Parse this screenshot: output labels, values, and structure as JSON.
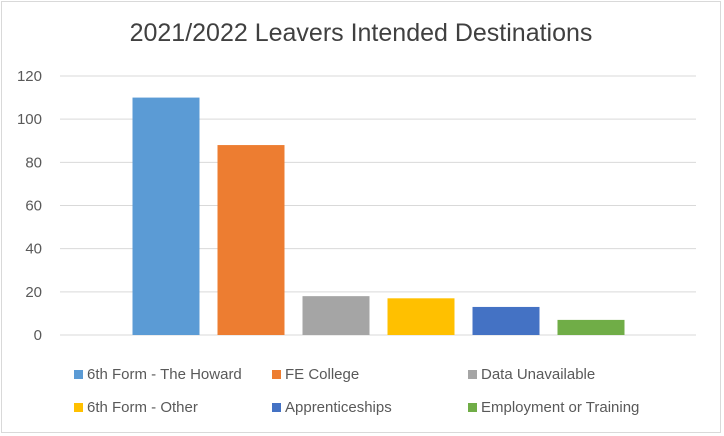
{
  "chart_data": {
    "type": "bar",
    "title": "2021/2022 Leavers Intended Destinations",
    "xlabel": "",
    "ylabel": "",
    "ylim": [
      0,
      120
    ],
    "yticks": [
      0,
      20,
      40,
      60,
      80,
      100,
      120
    ],
    "grid": true,
    "legend_position": "bottom",
    "series": [
      {
        "name": "6th Form - The Howard",
        "value": 110,
        "color": "#5b9bd5"
      },
      {
        "name": "FE College",
        "value": 88,
        "color": "#ed7d31"
      },
      {
        "name": "Data Unavailable",
        "value": 18,
        "color": "#a5a5a5"
      },
      {
        "name": "6th Form - Other",
        "value": 17,
        "color": "#ffc000"
      },
      {
        "name": "Apprenticeships",
        "value": 13,
        "color": "#4472c4"
      },
      {
        "name": "Employment or Training",
        "value": 7,
        "color": "#70ad47"
      }
    ]
  }
}
